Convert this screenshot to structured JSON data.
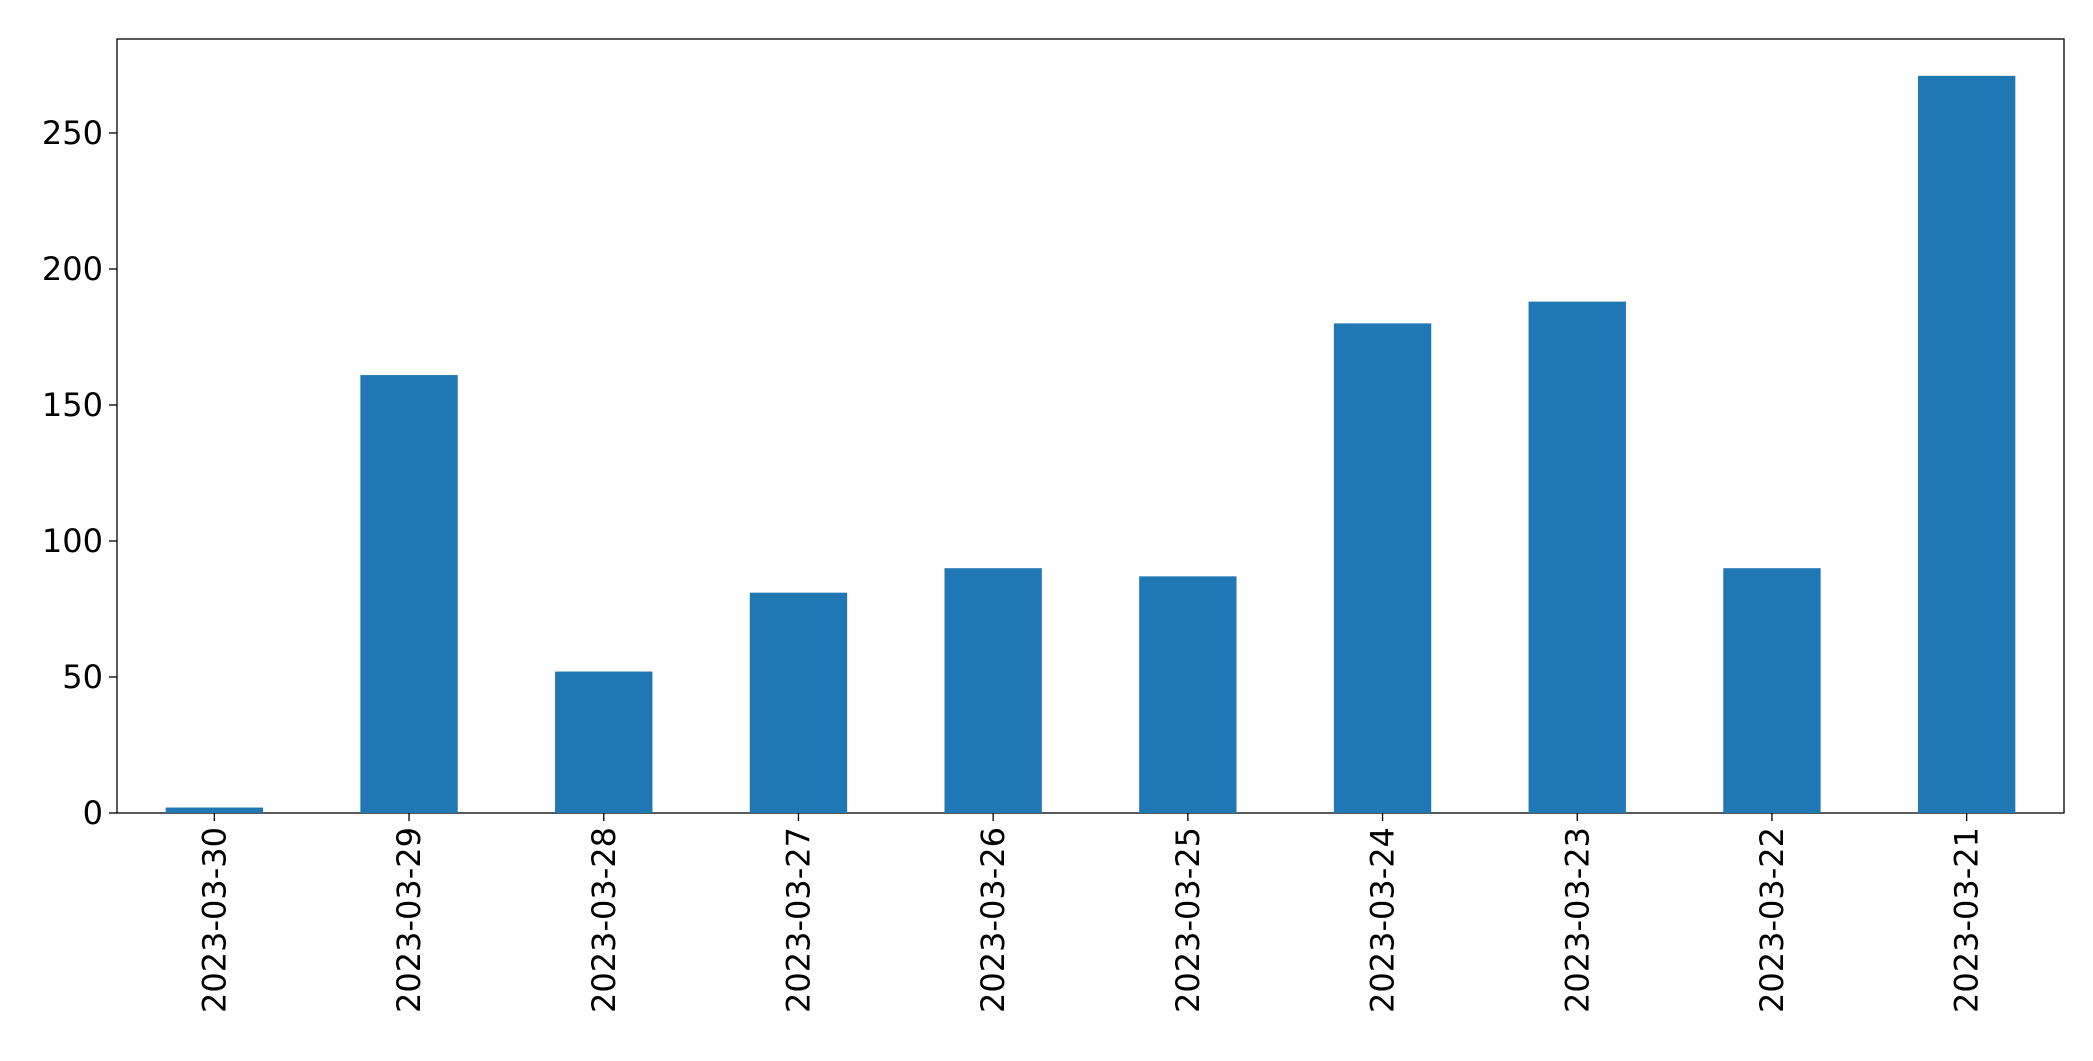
{
  "chart_data": {
    "type": "bar",
    "categories": [
      "2023-03-30",
      "2023-03-29",
      "2023-03-28",
      "2023-03-27",
      "2023-03-26",
      "2023-03-25",
      "2023-03-24",
      "2023-03-23",
      "2023-03-22",
      "2023-03-21"
    ],
    "values": [
      2,
      161,
      52,
      81,
      90,
      87,
      180,
      188,
      90,
      271
    ],
    "color": "#1f77b4",
    "ylim": [
      0,
      284.55
    ],
    "yticks": [
      0,
      50,
      100,
      150,
      200,
      250
    ],
    "grid": false
  }
}
